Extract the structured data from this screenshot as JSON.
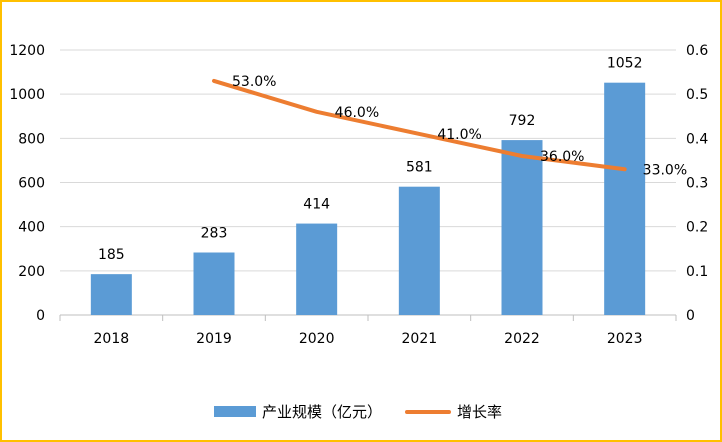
{
  "chart_data": {
    "type": "bar+line",
    "categories": [
      "2018",
      "2019",
      "2020",
      "2021",
      "2022",
      "2023"
    ],
    "series": [
      {
        "name": "产业规模（亿元）",
        "type": "bar",
        "axis": "left",
        "color": "#5b9bd5",
        "values": [
          185,
          283,
          414,
          581,
          792,
          1052
        ],
        "labels": [
          "185",
          "283",
          "414",
          "581",
          "792",
          "1052"
        ]
      },
      {
        "name": "增长率",
        "type": "line",
        "axis": "right",
        "color": "#ed7d31",
        "values": [
          null,
          0.53,
          0.46,
          0.41,
          0.36,
          0.33
        ],
        "labels": [
          "",
          "53.0%",
          "46.0%",
          "41.0%",
          "36.0%",
          "33.0%"
        ]
      }
    ],
    "ylim_left": [
      0,
      1200
    ],
    "yticks_left": [
      "0",
      "200",
      "400",
      "600",
      "800",
      "1000",
      "1200"
    ],
    "ylim_right": [
      0,
      0.6
    ],
    "yticks_right": [
      "0",
      "0.1",
      "0.2",
      "0.3",
      "0.4",
      "0.5",
      "0.6"
    ],
    "grid": true,
    "legend_position": "bottom"
  }
}
